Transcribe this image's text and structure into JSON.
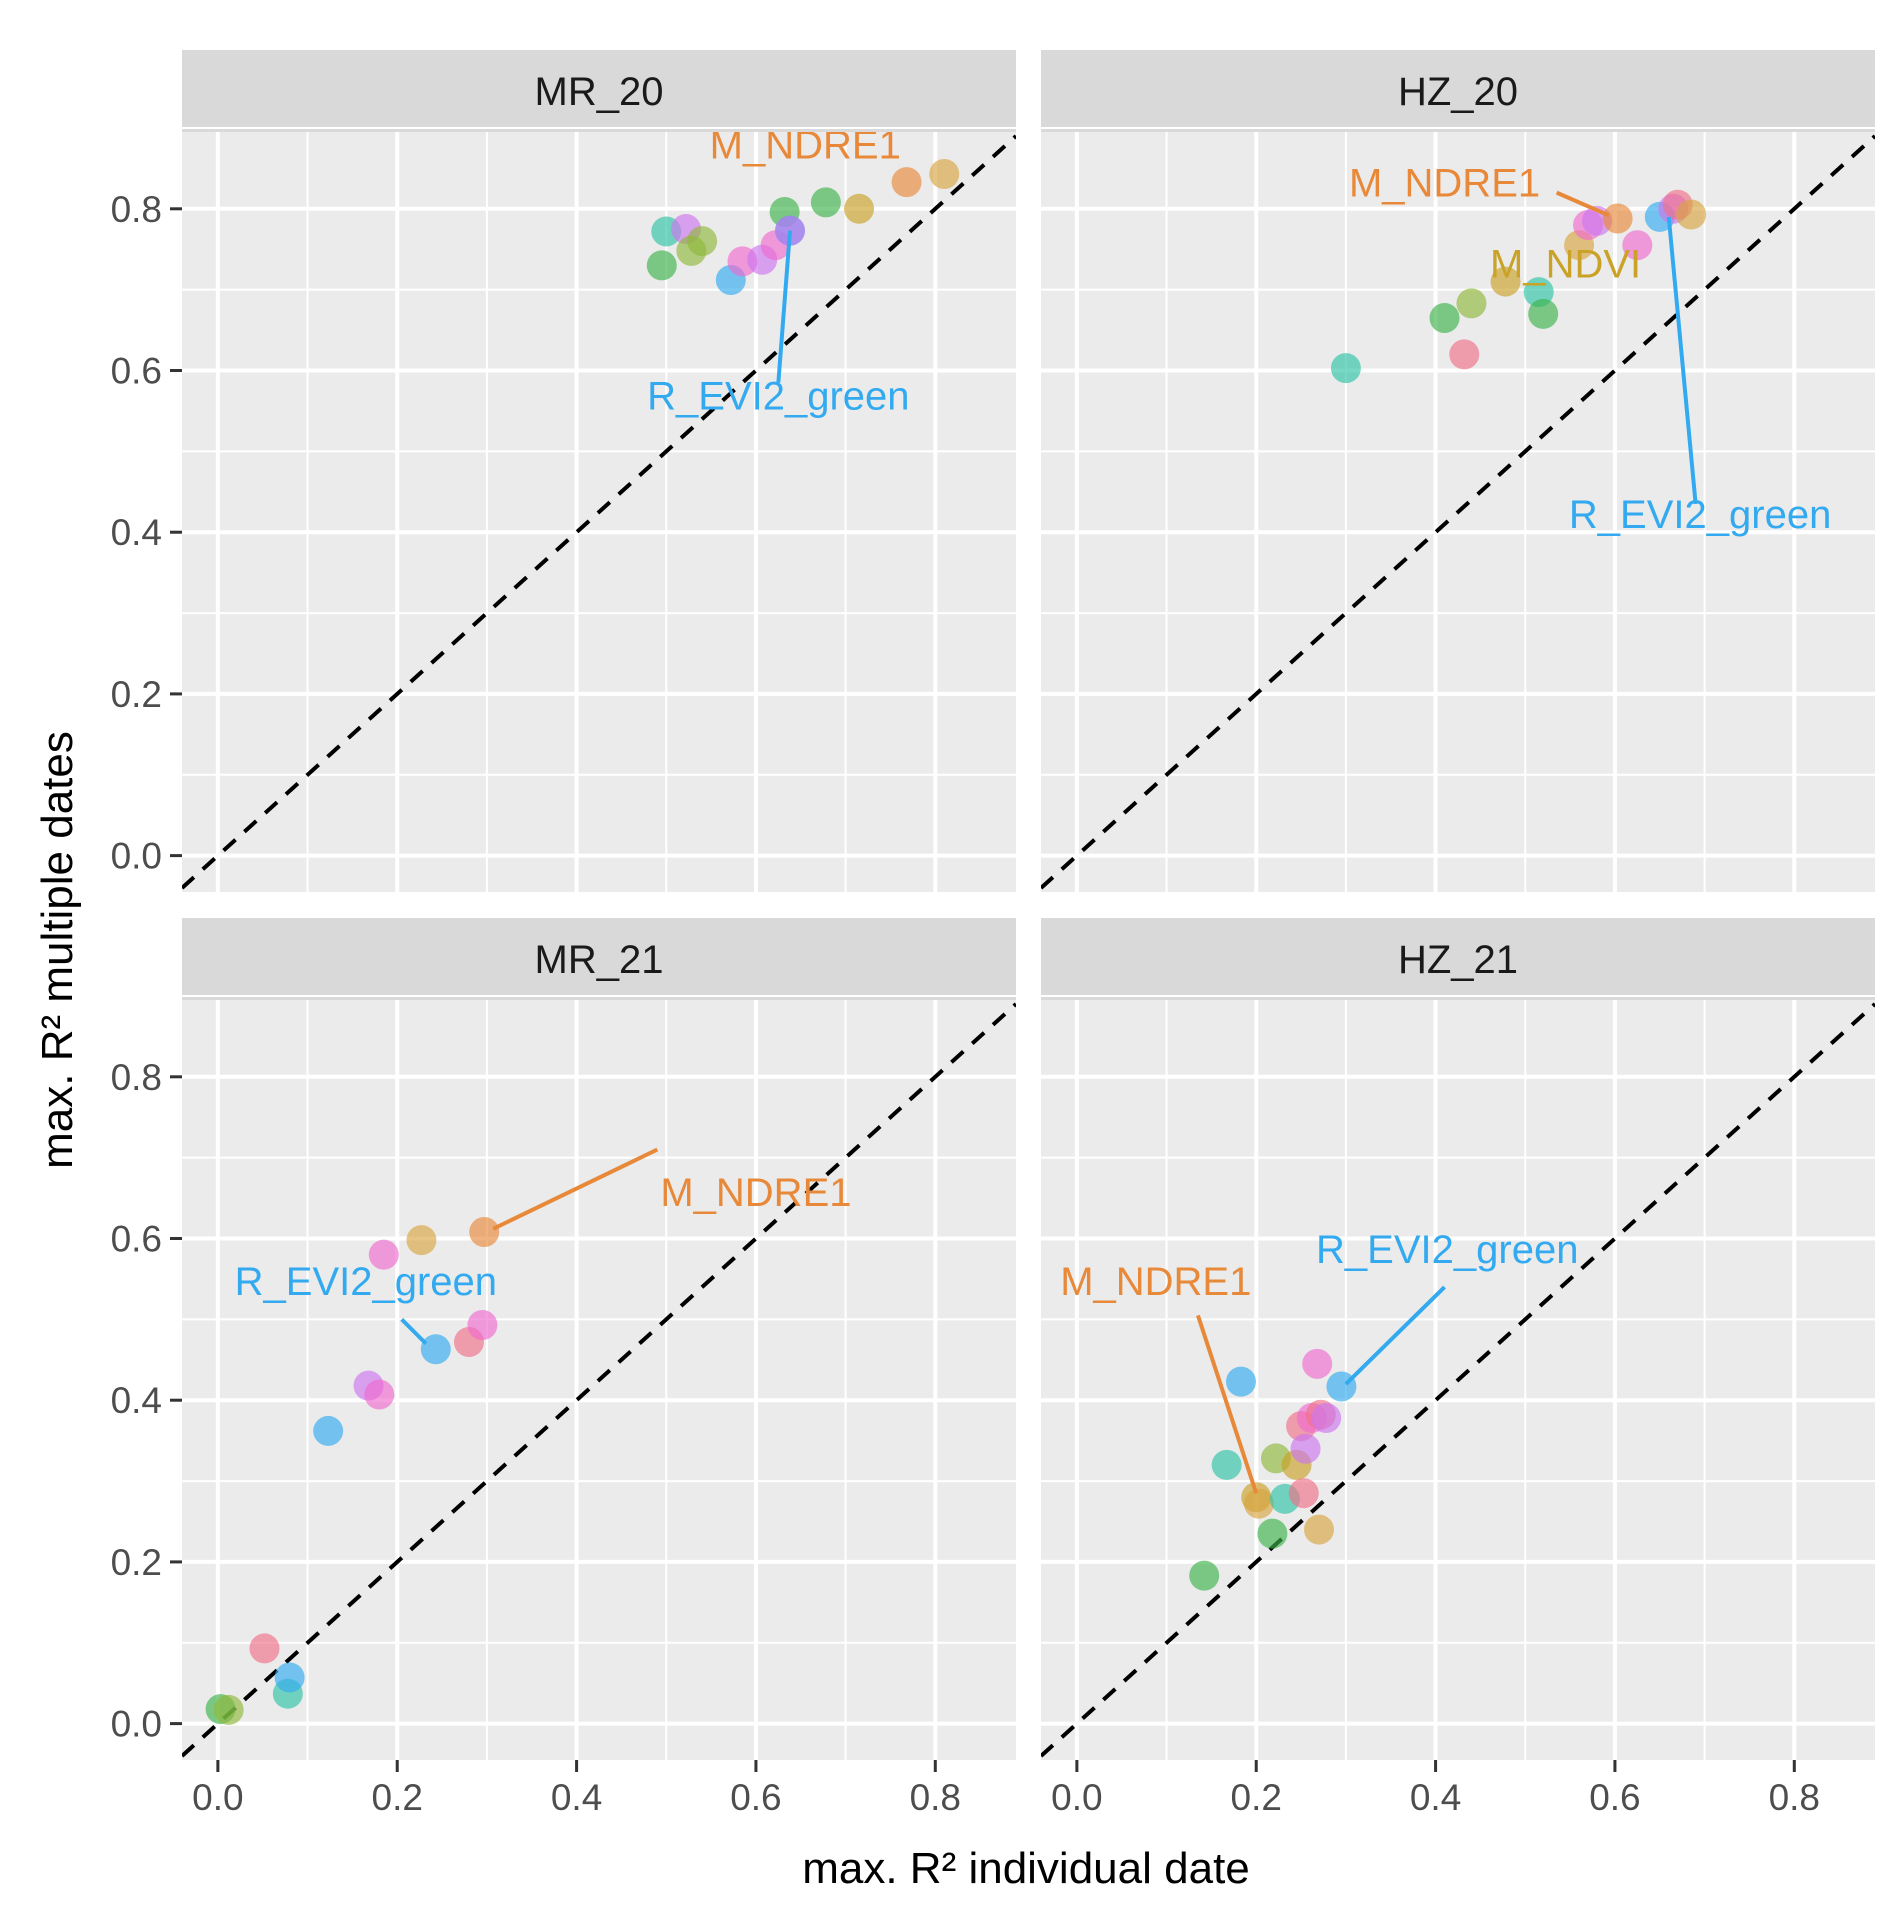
{
  "chart_data": {
    "type": "scatter",
    "xlabel": "max. R² individual date",
    "ylabel": "max. R² multiple dates",
    "xlim": [
      -0.04,
      0.89
    ],
    "ylim": [
      -0.045,
      0.895
    ],
    "x_ticks": [
      "0.0",
      "0.2",
      "0.4",
      "0.6",
      "0.8"
    ],
    "y_ticks": [
      "0.0",
      "0.2",
      "0.4",
      "0.6",
      "0.8"
    ],
    "reference_line": "y = x (dashed)",
    "colors": {
      "orange": "#e8893a",
      "olive": "#c9a227",
      "green": "#3cb44b",
      "teal": "#2ec4a6",
      "blue": "#33aaf0",
      "magenta": "#f06ad0",
      "violet": "#cc77ee",
      "pink": "#f07088",
      "gold": "#d9a441",
      "lime": "#8fb83a"
    },
    "panels": [
      {
        "title": "MR_20",
        "points": [
          {
            "x": 0.495,
            "y": 0.73,
            "c": "green"
          },
          {
            "x": 0.5,
            "y": 0.772,
            "c": "teal"
          },
          {
            "x": 0.522,
            "y": 0.775,
            "c": "violet"
          },
          {
            "x": 0.528,
            "y": 0.748,
            "c": "lime"
          },
          {
            "x": 0.54,
            "y": 0.76,
            "c": "lime"
          },
          {
            "x": 0.572,
            "y": 0.712,
            "c": "blue"
          },
          {
            "x": 0.585,
            "y": 0.735,
            "c": "magenta"
          },
          {
            "x": 0.607,
            "y": 0.737,
            "c": "violet"
          },
          {
            "x": 0.622,
            "y": 0.755,
            "c": "magenta"
          },
          {
            "x": 0.632,
            "y": 0.796,
            "c": "green"
          },
          {
            "x": 0.638,
            "y": 0.773,
            "c": "blue"
          },
          {
            "x": 0.638,
            "y": 0.773,
            "c": "violet"
          },
          {
            "x": 0.678,
            "y": 0.808,
            "c": "green"
          },
          {
            "x": 0.715,
            "y": 0.8,
            "c": "olive"
          },
          {
            "x": 0.768,
            "y": 0.833,
            "c": "orange"
          },
          {
            "x": 0.81,
            "y": 0.843,
            "c": "gold"
          }
        ],
        "labels": [
          {
            "text": "M_NDRE1",
            "c": "orange",
            "tx": 0.655,
            "ty": 0.862,
            "px": 0.768,
            "py": 0.833,
            "line": false
          },
          {
            "text": "R_EVI2_green",
            "c": "blue",
            "tx": 0.625,
            "ty": 0.552,
            "px": 0.638,
            "py": 0.773,
            "line": true,
            "lx": 0.625,
            "ly": 0.585
          }
        ]
      },
      {
        "title": "HZ_20",
        "points": [
          {
            "x": 0.3,
            "y": 0.603,
            "c": "teal"
          },
          {
            "x": 0.41,
            "y": 0.665,
            "c": "green"
          },
          {
            "x": 0.432,
            "y": 0.62,
            "c": "pink"
          },
          {
            "x": 0.44,
            "y": 0.683,
            "c": "lime"
          },
          {
            "x": 0.478,
            "y": 0.71,
            "c": "olive"
          },
          {
            "x": 0.515,
            "y": 0.697,
            "c": "teal"
          },
          {
            "x": 0.52,
            "y": 0.67,
            "c": "green"
          },
          {
            "x": 0.56,
            "y": 0.755,
            "c": "gold"
          },
          {
            "x": 0.57,
            "y": 0.78,
            "c": "magenta"
          },
          {
            "x": 0.58,
            "y": 0.785,
            "c": "violet"
          },
          {
            "x": 0.603,
            "y": 0.788,
            "c": "orange"
          },
          {
            "x": 0.625,
            "y": 0.755,
            "c": "magenta"
          },
          {
            "x": 0.65,
            "y": 0.79,
            "c": "blue"
          },
          {
            "x": 0.665,
            "y": 0.8,
            "c": "violet"
          },
          {
            "x": 0.67,
            "y": 0.805,
            "c": "pink"
          },
          {
            "x": 0.685,
            "y": 0.793,
            "c": "gold"
          }
        ],
        "labels": [
          {
            "text": "M_NDRE1",
            "c": "orange",
            "tx": 0.41,
            "ty": 0.815,
            "px": 0.593,
            "py": 0.792,
            "line": true,
            "lx": 0.535,
            "ly": 0.82
          },
          {
            "text": "M_NDVI",
            "c": "olive",
            "tx": 0.545,
            "ty": 0.715,
            "px": 0.49,
            "py": 0.71,
            "line": false
          },
          {
            "text": "R_EVI2_green",
            "c": "blue",
            "tx": 0.695,
            "ty": 0.405,
            "px": 0.66,
            "py": 0.79,
            "line": true,
            "lx": 0.69,
            "ly": 0.435
          }
        ]
      },
      {
        "title": "MR_21",
        "points": [
          {
            "x": 0.003,
            "y": 0.018,
            "c": "green"
          },
          {
            "x": 0.012,
            "y": 0.017,
            "c": "lime"
          },
          {
            "x": 0.052,
            "y": 0.093,
            "c": "pink"
          },
          {
            "x": 0.078,
            "y": 0.037,
            "c": "teal"
          },
          {
            "x": 0.08,
            "y": 0.057,
            "c": "blue"
          },
          {
            "x": 0.123,
            "y": 0.362,
            "c": "blue"
          },
          {
            "x": 0.168,
            "y": 0.418,
            "c": "violet"
          },
          {
            "x": 0.18,
            "y": 0.407,
            "c": "magenta"
          },
          {
            "x": 0.185,
            "y": 0.58,
            "c": "magenta"
          },
          {
            "x": 0.227,
            "y": 0.598,
            "c": "gold"
          },
          {
            "x": 0.243,
            "y": 0.463,
            "c": "blue"
          },
          {
            "x": 0.28,
            "y": 0.472,
            "c": "pink"
          },
          {
            "x": 0.295,
            "y": 0.493,
            "c": "magenta"
          },
          {
            "x": 0.297,
            "y": 0.608,
            "c": "orange"
          }
        ],
        "labels": [
          {
            "text": "M_NDRE1",
            "c": "orange",
            "tx": 0.6,
            "ty": 0.64,
            "px": 0.307,
            "py": 0.612,
            "line": true,
            "lx": 0.49,
            "ly": 0.71
          },
          {
            "text": "R_EVI2_green",
            "c": "blue",
            "tx": 0.165,
            "ty": 0.53,
            "px": 0.232,
            "py": 0.47,
            "line": true,
            "lx": 0.205,
            "ly": 0.5
          }
        ]
      },
      {
        "title": "HZ_21",
        "points": [
          {
            "x": 0.142,
            "y": 0.183,
            "c": "green"
          },
          {
            "x": 0.167,
            "y": 0.32,
            "c": "teal"
          },
          {
            "x": 0.183,
            "y": 0.423,
            "c": "blue"
          },
          {
            "x": 0.2,
            "y": 0.28,
            "c": "olive"
          },
          {
            "x": 0.203,
            "y": 0.272,
            "c": "gold"
          },
          {
            "x": 0.218,
            "y": 0.235,
            "c": "green"
          },
          {
            "x": 0.222,
            "y": 0.328,
            "c": "lime"
          },
          {
            "x": 0.232,
            "y": 0.278,
            "c": "teal"
          },
          {
            "x": 0.245,
            "y": 0.32,
            "c": "olive"
          },
          {
            "x": 0.25,
            "y": 0.368,
            "c": "pink"
          },
          {
            "x": 0.253,
            "y": 0.285,
            "c": "pink"
          },
          {
            "x": 0.255,
            "y": 0.34,
            "c": "violet"
          },
          {
            "x": 0.262,
            "y": 0.378,
            "c": "magenta"
          },
          {
            "x": 0.268,
            "y": 0.445,
            "c": "magenta"
          },
          {
            "x": 0.27,
            "y": 0.24,
            "c": "gold"
          },
          {
            "x": 0.272,
            "y": 0.382,
            "c": "pink"
          },
          {
            "x": 0.278,
            "y": 0.378,
            "c": "violet"
          },
          {
            "x": 0.295,
            "y": 0.417,
            "c": "blue"
          }
        ],
        "labels": [
          {
            "text": "M_NDRE1",
            "c": "orange",
            "tx": 0.088,
            "ty": 0.53,
            "px": 0.2,
            "py": 0.285,
            "line": true,
            "lx": 0.135,
            "ly": 0.505
          },
          {
            "text": "R_EVI2_green",
            "c": "blue",
            "tx": 0.413,
            "ty": 0.57,
            "px": 0.3,
            "py": 0.42,
            "line": true,
            "lx": 0.41,
            "ly": 0.54
          }
        ]
      }
    ]
  }
}
